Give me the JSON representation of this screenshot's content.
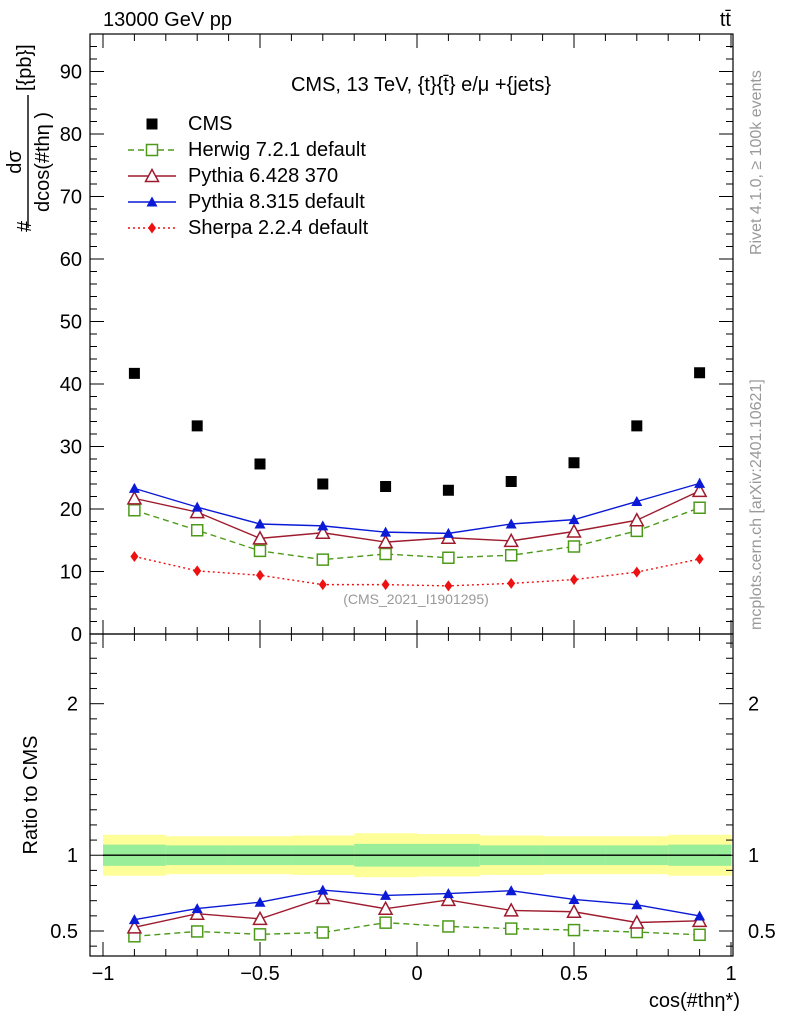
{
  "header": {
    "left": "13000 GeV pp",
    "right": "tt̄"
  },
  "side_labels": {
    "rivet": "Rivet 4.1.0, ≥ 100k events",
    "mcplots": "mcplots.cern.ch [arXiv:2401.10621]"
  },
  "watermark": "(CMS_2021_I1901295)",
  "chart_data": [
    {
      "type": "scatter",
      "panel": "main",
      "title": "CMS, 13 TeV, {t}{t̄} e/μ +{jets}",
      "xlabel": "cos(#thη*)",
      "ylabel_num": "dσ",
      "ylabel_den": "dcos(#thη )",
      "ylabel_prefix": "#",
      "ylabel_unit": "[{pb}]",
      "xlim": [
        -1,
        1
      ],
      "ylim": [
        0,
        96
      ],
      "yticks": [
        0,
        10,
        20,
        30,
        40,
        50,
        60,
        70,
        80,
        90
      ],
      "ytick_labels": [
        "0",
        "10",
        "20",
        "30",
        "40",
        "50",
        "60",
        "70",
        "80",
        "90"
      ],
      "x": [
        -0.9,
        -0.7,
        -0.5,
        -0.3,
        -0.1,
        0.1,
        0.3,
        0.5,
        0.7,
        0.9
      ],
      "series": [
        {
          "name": "CMS",
          "color": "#000000",
          "marker": "square-filled",
          "line": "none",
          "values": [
            41.7,
            33.3,
            27.2,
            24.0,
            23.6,
            23.0,
            24.4,
            27.4,
            33.3,
            41.8
          ],
          "err": [
            0,
            0,
            0,
            0,
            0,
            0,
            0,
            0,
            0,
            0
          ]
        },
        {
          "name": "Herwig 7.2.1 default",
          "color": "#4d9a1a",
          "marker": "square-open",
          "line": "dashed",
          "values": [
            19.8,
            16.6,
            13.3,
            11.9,
            12.8,
            12.2,
            12.6,
            14.0,
            16.5,
            20.2
          ],
          "err": [
            0.4,
            0.4,
            0.4,
            0.4,
            0.4,
            0.4,
            0.4,
            0.4,
            0.4,
            0.4
          ]
        },
        {
          "name": "Pythia 6.428 370",
          "color": "#9e1b2e",
          "marker": "triangle-open",
          "line": "solid",
          "values": [
            21.7,
            19.5,
            15.3,
            16.2,
            14.7,
            15.4,
            14.9,
            16.4,
            18.2,
            22.9
          ],
          "err": [
            0.5,
            0.5,
            0.5,
            0.5,
            0.5,
            0.5,
            0.5,
            0.5,
            0.5,
            0.5
          ]
        },
        {
          "name": "Pythia 8.315 default",
          "color": "#0a1ad6",
          "marker": "triangle-filled",
          "line": "solid",
          "values": [
            23.3,
            20.3,
            17.6,
            17.3,
            16.3,
            16.1,
            17.6,
            18.3,
            21.2,
            24.1
          ],
          "err": [
            0.7,
            0.7,
            0.6,
            0.6,
            0.6,
            0.6,
            0.6,
            0.7,
            0.7,
            0.8
          ]
        },
        {
          "name": "Sherpa 2.2.4 default",
          "color": "#ee1111",
          "marker": "diamond-filled",
          "line": "dotted",
          "values": [
            12.4,
            10.1,
            9.4,
            7.9,
            7.9,
            7.7,
            8.1,
            8.7,
            9.9,
            12.0
          ],
          "err": [
            0.3,
            0.3,
            0.3,
            0.3,
            0.3,
            0.3,
            0.3,
            0.3,
            0.3,
            0.3
          ]
        }
      ]
    },
    {
      "type": "scatter",
      "panel": "ratio",
      "ylabel": "Ratio to CMS",
      "xlabel": "cos(#thη*)",
      "xlim": [
        -1,
        1
      ],
      "ylim": [
        0.335,
        2.46
      ],
      "xticks": [
        -1,
        -0.5,
        0,
        0.5,
        1
      ],
      "xtick_labels": [
        "−1",
        "−0.5",
        "0",
        "0.5",
        "1"
      ],
      "yticks": [
        0.5,
        1,
        2
      ],
      "ytick_labels": [
        "0.5",
        "1",
        "2"
      ],
      "x": [
        -0.9,
        -0.7,
        -0.5,
        -0.3,
        -0.1,
        0.1,
        0.3,
        0.5,
        0.7,
        0.9
      ],
      "band_outer": [
        0.135,
        0.125,
        0.125,
        0.13,
        0.145,
        0.14,
        0.13,
        0.125,
        0.125,
        0.135
      ],
      "band_inner": [
        0.07,
        0.065,
        0.065,
        0.065,
        0.075,
        0.075,
        0.065,
        0.065,
        0.065,
        0.07
      ],
      "series": [
        {
          "name": "Herwig 7.2.1 default",
          "color": "#4d9a1a",
          "marker": "square-open",
          "line": "dashed",
          "values": [
            0.465,
            0.497,
            0.478,
            0.49,
            0.555,
            0.53,
            0.516,
            0.506,
            0.493,
            0.475
          ],
          "err": [
            0.01,
            0.01,
            0.01,
            0.015,
            0.015,
            0.015,
            0.015,
            0.01,
            0.01,
            0.01
          ]
        },
        {
          "name": "Pythia 6.428 370",
          "color": "#9e1b2e",
          "marker": "triangle-open",
          "line": "solid",
          "values": [
            0.524,
            0.614,
            0.58,
            0.718,
            0.647,
            0.705,
            0.636,
            0.627,
            0.556,
            0.567
          ],
          "err": [
            0.015,
            0.015,
            0.015,
            0.02,
            0.02,
            0.02,
            0.02,
            0.015,
            0.015,
            0.015
          ]
        },
        {
          "name": "Pythia 8.315 default",
          "color": "#0a1ad6",
          "marker": "triangle-filled",
          "line": "solid",
          "values": [
            0.575,
            0.648,
            0.69,
            0.77,
            0.735,
            0.747,
            0.766,
            0.708,
            0.673,
            0.599
          ],
          "err": [
            0.02,
            0.02,
            0.025,
            0.025,
            0.025,
            0.025,
            0.025,
            0.02,
            0.02,
            0.02
          ]
        }
      ]
    }
  ]
}
